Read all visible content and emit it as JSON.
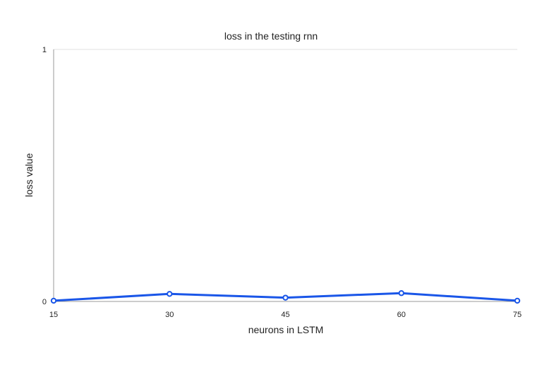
{
  "chart_data": {
    "type": "line",
    "title": "loss in the testing rnn",
    "xlabel": "neurons in LSTM",
    "ylabel": "loss value",
    "x": [
      15,
      30,
      45,
      60,
      75
    ],
    "series": [
      {
        "values": [
          0.003,
          0.03,
          0.015,
          0.033,
          0.003
        ]
      }
    ],
    "xlim": [
      15,
      75
    ],
    "ylim": [
      0,
      1
    ],
    "yticks": [
      "0",
      "1"
    ],
    "xticks": [
      "15",
      "30",
      "45",
      "60",
      "75"
    ],
    "grid": true,
    "legend": "none",
    "colors": {
      "line": "#1a56e8",
      "grid": "#e0e0e0",
      "axis": "#999999"
    }
  }
}
